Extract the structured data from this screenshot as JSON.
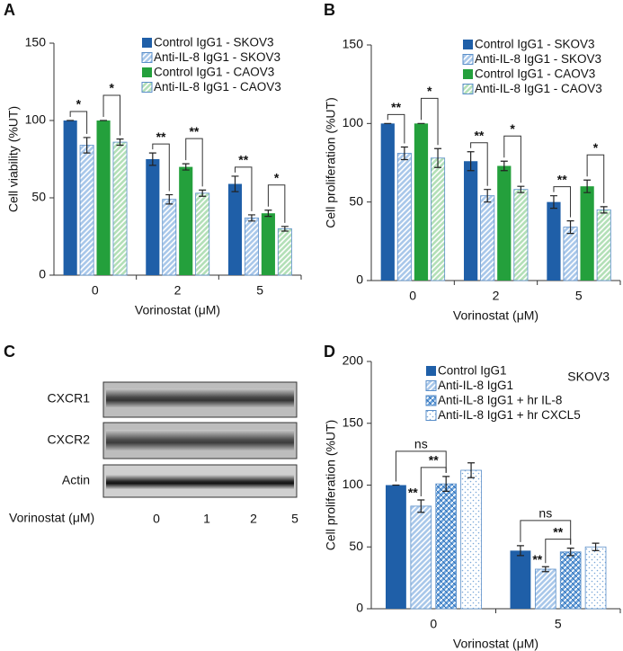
{
  "chart_data": [
    {
      "type": "bar",
      "panel": "A",
      "y_label": "Cell viability (%UT)",
      "x_label": "Vorinostat (μM)",
      "categories": [
        "0",
        "2",
        "5"
      ],
      "ylim": [
        0,
        150
      ],
      "yticks": [
        0,
        50,
        100,
        150
      ],
      "series": [
        {
          "name": "Control IgG1 - SKOV3",
          "color": "#1f5fa8",
          "pattern": "solid",
          "values": [
            100,
            75,
            59
          ],
          "errors": [
            0,
            4,
            5
          ]
        },
        {
          "name": "Anti-IL-8 IgG1 - SKOV3",
          "color": "#a9c8ea",
          "pattern": "hatch",
          "values": [
            84,
            49,
            37
          ],
          "errors": [
            5,
            3,
            2
          ]
        },
        {
          "name": "Control IgG1 - CAOV3",
          "color": "#24a03c",
          "pattern": "solid",
          "values": [
            100,
            70,
            40
          ],
          "errors": [
            0,
            2,
            2
          ]
        },
        {
          "name": "Anti-IL-8 IgG1 - CAOV3",
          "color": "#b3e0b8",
          "pattern": "hatch",
          "values": [
            86,
            53,
            30
          ],
          "errors": [
            2,
            2,
            1.5
          ]
        }
      ],
      "significance": [
        {
          "category": 0,
          "series": [
            0,
            1
          ],
          "label": "*"
        },
        {
          "category": 0,
          "series": [
            2,
            3
          ],
          "label": "*"
        },
        {
          "category": 1,
          "series": [
            0,
            1
          ],
          "label": "**"
        },
        {
          "category": 1,
          "series": [
            2,
            3
          ],
          "label": "**"
        },
        {
          "category": 2,
          "series": [
            0,
            1
          ],
          "label": "**"
        },
        {
          "category": 2,
          "series": [
            2,
            3
          ],
          "label": "*"
        }
      ]
    },
    {
      "type": "bar",
      "panel": "B",
      "y_label": "Cell proliferation (%UT)",
      "x_label": "Vorinostat (μM)",
      "categories": [
        "0",
        "2",
        "5"
      ],
      "ylim": [
        0,
        150
      ],
      "yticks": [
        0,
        50,
        100,
        150
      ],
      "series": [
        {
          "name": "Control IgG1 - SKOV3",
          "color": "#1f5fa8",
          "pattern": "solid",
          "values": [
            100,
            76,
            50
          ],
          "errors": [
            0,
            6,
            4
          ]
        },
        {
          "name": "Anti-IL-8 IgG1 - SKOV3",
          "color": "#a9c8ea",
          "pattern": "hatch",
          "values": [
            81,
            54,
            34
          ],
          "errors": [
            4,
            4,
            4
          ]
        },
        {
          "name": "Control IgG1 - CAOV3",
          "color": "#24a03c",
          "pattern": "solid",
          "values": [
            100,
            73,
            60
          ],
          "errors": [
            0,
            3,
            4
          ]
        },
        {
          "name": "Anti-IL-8 IgG1 - CAOV3",
          "color": "#b3e0b8",
          "pattern": "hatch",
          "values": [
            78,
            58,
            45
          ],
          "errors": [
            6,
            2,
            2
          ]
        }
      ],
      "significance": [
        {
          "category": 0,
          "series": [
            0,
            1
          ],
          "label": "**"
        },
        {
          "category": 0,
          "series": [
            2,
            3
          ],
          "label": "*"
        },
        {
          "category": 1,
          "series": [
            0,
            1
          ],
          "label": "**"
        },
        {
          "category": 1,
          "series": [
            2,
            3
          ],
          "label": "*"
        },
        {
          "category": 2,
          "series": [
            0,
            1
          ],
          "label": "**"
        },
        {
          "category": 2,
          "series": [
            2,
            3
          ],
          "label": "*"
        }
      ]
    },
    {
      "type": "bar",
      "panel": "D",
      "y_label": "Cell proliferation (%UT)",
      "x_label": "Vorinostat (μM)",
      "annotation": "SKOV3",
      "categories": [
        "0",
        "5"
      ],
      "ylim": [
        0,
        200
      ],
      "yticks": [
        0,
        50,
        100,
        150,
        200
      ],
      "series": [
        {
          "name": "Control IgG1",
          "color": "#1f5fa8",
          "pattern": "solid",
          "values": [
            100,
            47
          ],
          "errors": [
            0,
            4
          ]
        },
        {
          "name": "Anti-IL-8 IgG1",
          "color": "#a9c8ea",
          "pattern": "hatch",
          "values": [
            83,
            32
          ],
          "errors": [
            5,
            2
          ]
        },
        {
          "name": "Anti-IL-8 IgG1 + hr IL-8",
          "color": "#6fa6de",
          "pattern": "cross",
          "values": [
            101,
            46
          ],
          "errors": [
            6,
            3
          ]
        },
        {
          "name": "Anti-IL-8 IgG1 + hr CXCL5",
          "color": "#f4f8fd",
          "pattern": "dots",
          "values": [
            112,
            50
          ],
          "errors": [
            6,
            3
          ]
        }
      ],
      "significance": [
        {
          "category": 0,
          "series": [
            1
          ],
          "label": "**"
        },
        {
          "category": 0,
          "series": [
            1,
            2
          ],
          "label": "**"
        },
        {
          "category": 0,
          "series": [
            0,
            2
          ],
          "label": "ns"
        },
        {
          "category": 1,
          "series": [
            1
          ],
          "label": "**"
        },
        {
          "category": 1,
          "series": [
            1,
            2
          ],
          "label": "**"
        },
        {
          "category": 1,
          "series": [
            0,
            2
          ],
          "label": "ns"
        }
      ]
    }
  ],
  "blot": {
    "panel": "C",
    "rows": [
      "CXCR1",
      "CXCR2",
      "Actin"
    ],
    "x_label": "Vorinostat (μM)",
    "lanes": [
      "0",
      "1",
      "2",
      "5"
    ]
  }
}
